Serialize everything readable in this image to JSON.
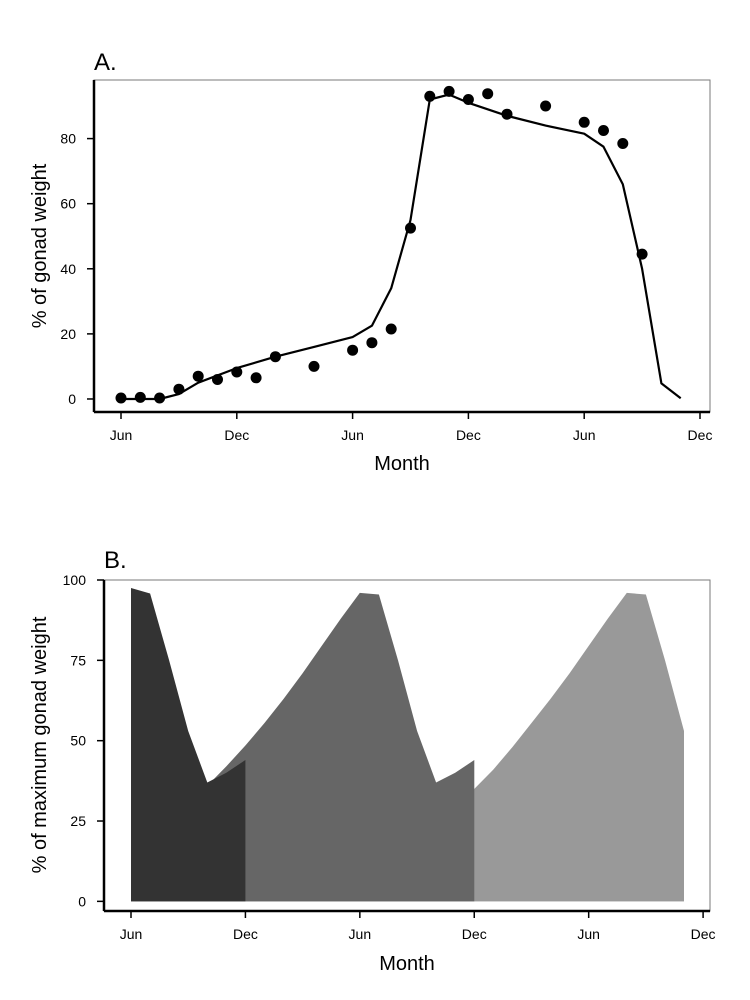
{
  "chart_data": [
    {
      "panel": "A.",
      "type": "line",
      "xlabel": "Month",
      "ylabel": "% of gonad weight",
      "x_ticks": [
        "Jun",
        "Dec",
        "Jun",
        "Dec",
        "Jun",
        "Dec"
      ],
      "y_ticks": [
        "0",
        "20",
        "40",
        "60",
        "80"
      ],
      "ylim": [
        -4,
        98
      ],
      "grid": false,
      "series": [
        {
          "kind": "points",
          "x": [
            0,
            1,
            2,
            3,
            4,
            5,
            6,
            7,
            8,
            10,
            12,
            13,
            14,
            15,
            16,
            17,
            18,
            19,
            20,
            22,
            24,
            25,
            26,
            27
          ],
          "y": [
            0.3,
            0.5,
            0.3,
            3,
            7,
            6,
            8.3,
            6.5,
            13,
            10,
            15,
            17.3,
            21.5,
            52.5,
            93,
            94.5,
            92,
            93.8,
            87.5,
            90,
            85,
            82.5,
            78.5,
            44.5
          ]
        },
        {
          "kind": "line",
          "x": [
            0,
            1,
            2,
            3,
            4,
            6,
            8,
            10,
            12,
            13,
            14,
            15,
            16,
            17,
            18,
            20,
            22,
            24,
            25,
            26,
            27,
            28,
            29
          ],
          "y": [
            0,
            0,
            0,
            1.5,
            5,
            9.5,
            13,
            16,
            19,
            22.5,
            34,
            55,
            92,
            93.5,
            91,
            87,
            84,
            81.5,
            77.5,
            66,
            40,
            4.8,
            0.2
          ]
        }
      ]
    },
    {
      "panel": "B.",
      "type": "area",
      "xlabel": "Month",
      "ylabel": "% of maximum gonad weight",
      "x_ticks": [
        "Jun",
        "Dec",
        "Jun",
        "Dec",
        "Jun",
        "Dec"
      ],
      "y_ticks": [
        "0",
        "25",
        "50",
        "75",
        "100"
      ],
      "ylim": [
        -3,
        100
      ],
      "grid": false,
      "series": [
        {
          "color": "#333333",
          "x": [
            0,
            1,
            2,
            3,
            4,
            5,
            6
          ],
          "y": [
            97.5,
            95.8,
            75,
            53,
            37,
            40,
            44
          ]
        },
        {
          "color": "#666666",
          "x": [
            0,
            1,
            2,
            3,
            4,
            5,
            6,
            7,
            8,
            9,
            10,
            11,
            12,
            13,
            14,
            15,
            16,
            17,
            18
          ],
          "y": [
            18.5,
            21,
            25.5,
            30.5,
            36,
            42,
            48.5,
            55.5,
            63,
            71,
            79.5,
            88,
            96,
            95.5,
            75,
            53,
            37,
            40,
            44
          ]
        },
        {
          "color": "#999999",
          "x": [
            0,
            6,
            7,
            8,
            9,
            10,
            11,
            12,
            13,
            14,
            15,
            16,
            17,
            18,
            19,
            20,
            21,
            22,
            23,
            24,
            25,
            26,
            27,
            28,
            29
          ],
          "y": [
            0,
            1.6,
            2.6,
            3.8,
            5.3,
            7,
            9.1,
            11.5,
            14.5,
            17.9,
            21.5,
            25.5,
            30,
            35,
            41,
            48,
            55.5,
            63,
            71,
            79.5,
            88,
            96,
            95.5,
            75,
            53
          ]
        },
        {
          "color": "#cccccc",
          "x": [
            0,
            12,
            13,
            14,
            15,
            16,
            17,
            18,
            19,
            20,
            21,
            22,
            23,
            24,
            25,
            26,
            27,
            28,
            29
          ],
          "y": [
            0,
            0.3,
            0.8,
            1.5,
            2.4,
            3.6,
            5,
            6.7,
            8.7,
            11,
            13.6,
            16.5,
            19.7,
            23.1,
            26.7,
            30.4,
            34,
            37,
            38
          ]
        }
      ]
    }
  ]
}
